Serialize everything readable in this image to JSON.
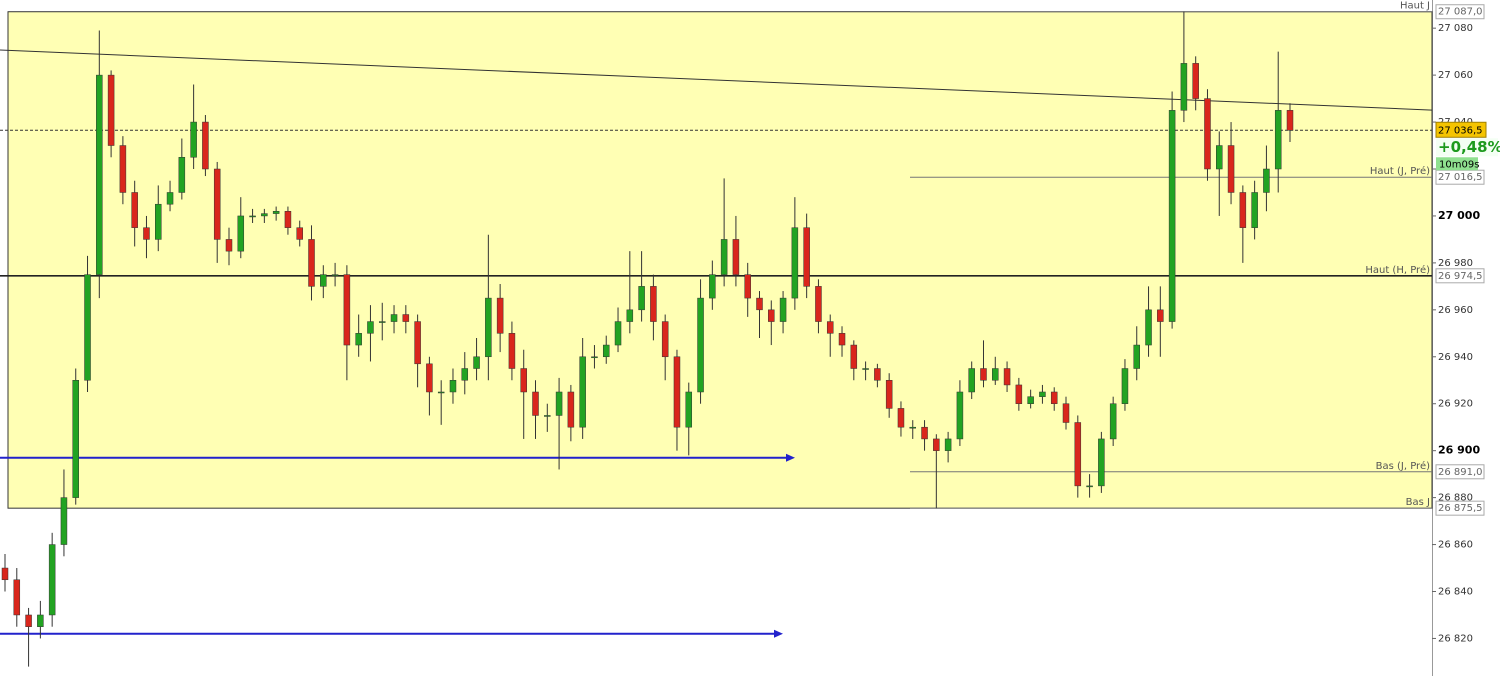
{
  "chart_data": {
    "type": "candlestick",
    "ylim": [
      26804,
      27092
    ],
    "yticks": [
      {
        "value": 26820,
        "label": "26 820"
      },
      {
        "value": 26840,
        "label": "26 840"
      },
      {
        "value": 26860,
        "label": "26 860"
      },
      {
        "value": 26880,
        "label": "26 880"
      },
      {
        "value": 26900,
        "label": "26 900"
      },
      {
        "value": 26920,
        "label": "26 920"
      },
      {
        "value": 26940,
        "label": "26 940"
      },
      {
        "value": 26960,
        "label": "26 960"
      },
      {
        "value": 26980,
        "label": "26 980"
      },
      {
        "value": 27000,
        "label": "27 000"
      },
      {
        "value": 27020,
        "label": "27 020"
      },
      {
        "value": 27040,
        "label": "27 040"
      },
      {
        "value": 27060,
        "label": "27 060"
      },
      {
        "value": 27080,
        "label": "27 080"
      }
    ],
    "up_color": "#22a322",
    "down_color": "#d9261c",
    "range_color": "#ffffb4",
    "open": [
      26850,
      26845,
      26830,
      26825,
      26830,
      26860,
      26880,
      26930,
      26975,
      27060,
      27030,
      27010,
      26995,
      26990,
      27005,
      27010,
      27025,
      27040,
      27020,
      26990,
      26985,
      27000,
      27000,
      27001,
      27002,
      26995,
      26990,
      26970,
      26975,
      26975,
      26945,
      26950,
      26955,
      26955,
      26958,
      26955,
      26937,
      26925,
      26925,
      26930,
      26935,
      26940,
      26965,
      26950,
      26935,
      26925,
      26915,
      26915,
      26925,
      26910,
      26940,
      26940,
      26945,
      26955,
      26960,
      26970,
      26955,
      26940,
      26910,
      26925,
      26965,
      26975,
      26990,
      26975,
      26965,
      26960,
      26955,
      26965,
      26995,
      26970,
      26955,
      26950,
      26945,
      26935,
      26935,
      26930,
      26918,
      26910,
      26910,
      26905,
      26900,
      26905,
      26925,
      26935,
      26930,
      26935,
      26928,
      26920,
      26923,
      26925,
      26920,
      26912,
      26885,
      26885,
      26905,
      26920,
      26935,
      26945,
      26960,
      26955,
      27045,
      27065,
      27050,
      27020,
      27030,
      27010,
      26995,
      27010,
      27020,
      27045
    ],
    "high": [
      26856,
      26850,
      26833,
      26836,
      26865,
      26892,
      26935,
      26983,
      27079,
      27062,
      27034,
      27015,
      27000,
      27013,
      27015,
      27033,
      27056,
      27043,
      27023,
      26995,
      27008,
      27003,
      27003,
      27004,
      27004,
      26998,
      26996,
      26979,
      26980,
      26979,
      26958,
      26962,
      26963,
      26962,
      26962,
      26958,
      26940,
      26930,
      26935,
      26942,
      26948,
      26992,
      26971,
      26955,
      26943,
      26930,
      26920,
      26931,
      26928,
      26948,
      26945,
      26949,
      26961,
      26985,
      26985,
      26975,
      26958,
      26943,
      26929,
      26973,
      26981,
      27016,
      27000,
      26980,
      26968,
      26964,
      26968,
      27008,
      27001,
      26973,
      26958,
      26953,
      26947,
      26938,
      26937,
      26933,
      26921,
      26913,
      26913,
      26907,
      26908,
      26930,
      26938,
      26947,
      26940,
      26938,
      26931,
      26926,
      26928,
      26927,
      26923,
      26915,
      26890,
      26908,
      26923,
      26939,
      26953,
      26970,
      26970,
      27053,
      27087,
      27068,
      27054,
      27036,
      27040,
      27013,
      27015,
      27030,
      27070,
      27048
    ],
    "low": [
      26840,
      26825,
      26808,
      26820,
      26825,
      26855,
      26877,
      26925,
      26965,
      27025,
      27005,
      26987,
      26982,
      26985,
      27002,
      27007,
      27020,
      27017,
      26980,
      26979,
      26982,
      26997,
      26997,
      26998,
      26992,
      26987,
      26964,
      26965,
      26970,
      26930,
      26940,
      26938,
      26947,
      26950,
      26950,
      26927,
      26915,
      26911,
      26920,
      26924,
      26930,
      26930,
      26942,
      26930,
      26905,
      26905,
      26908,
      26892,
      26904,
      26905,
      26935,
      26937,
      26942,
      26950,
      26955,
      26947,
      26930,
      26900,
      26898,
      26920,
      26960,
      26970,
      26970,
      26957,
      26948,
      26945,
      26950,
      26960,
      26965,
      26950,
      26940,
      26940,
      26930,
      26930,
      26927,
      26914,
      26906,
      26905,
      26900,
      26875.5,
      26895,
      26902,
      26922,
      26927,
      26928,
      26925,
      26917,
      26918,
      26920,
      26917,
      26909,
      26880,
      26880,
      26882,
      26902,
      26917,
      26930,
      26940,
      26940,
      26952,
      27040,
      27045,
      27015,
      27000,
      27005,
      26980,
      26990,
      27002,
      27010,
      27031.5
    ],
    "close": [
      26845,
      26830,
      26825,
      26830,
      26860,
      26880,
      26930,
      26975,
      27060,
      27030,
      27010,
      26995,
      26990,
      27005,
      27010,
      27025,
      27040,
      27020,
      26990,
      26985,
      27000,
      27000,
      27001,
      27002,
      26995,
      26990,
      26970,
      26975,
      26975,
      26945,
      26950,
      26955,
      26955,
      26958,
      26955,
      26937,
      26925,
      26925,
      26930,
      26935,
      26940,
      26965,
      26950,
      26935,
      26925,
      26915,
      26915,
      26925,
      26910,
      26940,
      26940,
      26945,
      26955,
      26960,
      26970,
      26955,
      26940,
      26910,
      26925,
      26965,
      26975,
      26990,
      26975,
      26965,
      26960,
      26955,
      26965,
      26995,
      26970,
      26955,
      26950,
      26945,
      26935,
      26935,
      26930,
      26918,
      26910,
      26910,
      26905,
      26900,
      26905,
      26925,
      26935,
      26930,
      26935,
      26928,
      26920,
      26923,
      26925,
      26920,
      26912,
      26885,
      26885,
      26905,
      26920,
      26935,
      26945,
      26960,
      26955,
      27045,
      27065,
      27050,
      27020,
      27030,
      27010,
      26995,
      27010,
      27020,
      27045,
      27036.5
    ],
    "levels": [
      {
        "name": "Haut J",
        "value": 27087.0,
        "label": "27 087,0"
      },
      {
        "name": "Haut (J, Pré)",
        "value": 27016.5,
        "label": "27 016,5"
      },
      {
        "name": "Haut (H, Pré)",
        "value": 26974.5,
        "label": "26 974,5",
        "emphasis": true
      },
      {
        "name": "Bas (J, Pré)",
        "value": 26891.0,
        "label": "26 891,0"
      },
      {
        "name": "Bas J",
        "value": 26875.5,
        "label": "26 875,5"
      }
    ],
    "last_price": {
      "value": 27036.5,
      "label": "27 036,5",
      "change": "+0,48%",
      "timer": "10m09s"
    },
    "trendline": [
      27070.7,
      27045.1
    ],
    "arrows": [
      26897,
      26822
    ]
  }
}
